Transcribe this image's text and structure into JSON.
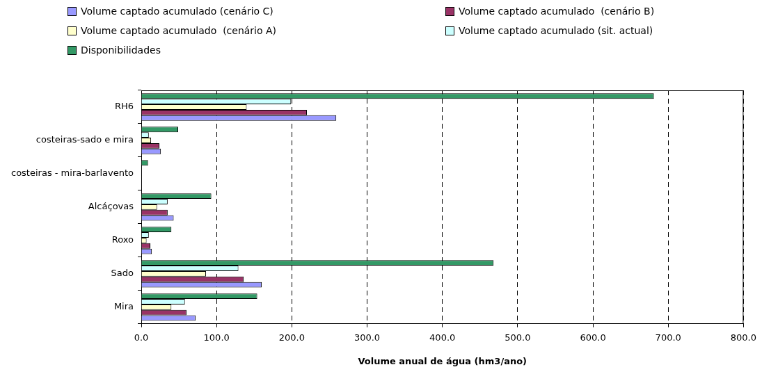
{
  "chart_data": {
    "type": "bar",
    "orientation": "horizontal",
    "xlabel": "Volume anual de água (hm3/ano)",
    "categories": [
      "RH6",
      "costeiras-sado e mira",
      "costeiras - mira-barlavento",
      "Alcáçovas",
      "Roxo",
      "Sado",
      "Mira"
    ],
    "series": [
      {
        "name": "Volume captado acumulado (cenário C)",
        "color": "#9999ff",
        "values": [
          259,
          26,
          null,
          43,
          14,
          160,
          72
        ]
      },
      {
        "name": "Volume captado acumulado  (cenário B)",
        "color": "#993366",
        "values": [
          220,
          24,
          null,
          35,
          12,
          136,
          60
        ]
      },
      {
        "name": "Volume captado acumulado  (cenário A)",
        "color": "#ffffcc",
        "values": [
          140,
          13,
          null,
          21,
          7,
          86,
          40
        ]
      },
      {
        "name": "Volume captado acumulado (sit. actual)",
        "color": "#ccffff",
        "values": [
          199,
          10,
          null,
          35,
          10,
          129,
          58
        ]
      },
      {
        "name": "Disponibilidades",
        "color": "#339966",
        "values": [
          681,
          49,
          9,
          93,
          40,
          468,
          154
        ]
      }
    ],
    "xlim": [
      0,
      800
    ],
    "xticks": [
      {
        "value": 0,
        "label": "0.0"
      },
      {
        "value": 100,
        "label": "100.0"
      },
      {
        "value": 200,
        "label": "200.0"
      },
      {
        "value": 300,
        "label": "300.0"
      },
      {
        "value": 400,
        "label": "400.0"
      },
      {
        "value": 500,
        "label": "500.0"
      },
      {
        "value": 600,
        "label": "600.0"
      },
      {
        "value": 700,
        "label": "700.0"
      },
      {
        "value": 800,
        "label": "800.0"
      }
    ],
    "grid": "x",
    "legend": "top"
  }
}
